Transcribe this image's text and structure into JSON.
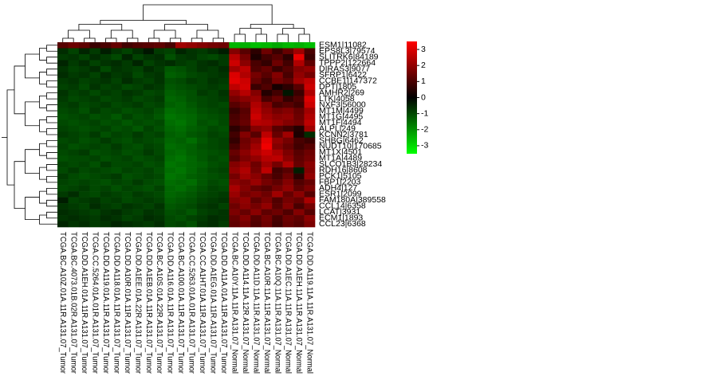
{
  "chart_data": {
    "type": "heatmap",
    "rows": [
      "ESM1|11082",
      "EPS8L3|79574",
      "SLITRK6|84189",
      "TPPP2|122664",
      "DIRAS3|9077",
      "SFRP1|6422",
      "CCBE1|147372",
      "DPT|1805",
      "AMHR2|269",
      "LTK|4058",
      "NXF3|56000",
      "MT1M|4499",
      "MT1G|4495",
      "MT1F|4494",
      "ALPL|249",
      "KCNN2|3781",
      "SHBG|6462",
      "NUDT10|170685",
      "MT1X|4501",
      "MT1A|4489",
      "SLCO1B3|28234",
      "RDH16|8608",
      "PCK1|5105",
      "FBP1|2203",
      "ADH4|127",
      "ESR1|2099",
      "FAM180A|389558",
      "CCL14|6358",
      "LCAT|3931",
      "ECM1|1893",
      "CCL23|6368"
    ],
    "columns": [
      "TCGA.BC.A10Z.01A.11R.A131.07_Tumor",
      "TCGA.BC.4073.01B.02R.A131.07_Tumor",
      "TCGA.DD.A1EH.01A.11R.A131.07_Tumor",
      "TCGA.CC.5264.01A.01R.A131.07_Tumor",
      "TCGA.DD.A119.01A.11R.A131.07_Tumor",
      "TCGA.DD.A118.01A.11R.A131.07_Tumor",
      "TCGA.DD.A10R.01A.11R.A131.07_Tumor",
      "TCGA.DD.A1EE.01A.22R.A131.07_Tumor",
      "TCGA.DD.A1EB.01A.11R.A131.07_Tumor",
      "TCGA.BC.A10S.01A.22R.A131.07_Tumor",
      "TCGA.DD.A116.01A.11R.A131.07_Tumor",
      "TCGA.BC.A100.01A.11R.A131.07_Tumor",
      "TCGA.CC.5263.01A.01R.A131.07_Tumor",
      "TCGA.CC.A1HT.01A.11R.A131.07_Tumor",
      "TCGA.DD.A1EG.01A.11R.A131.07_Tumor",
      "TCGA.DD.A11A.01A.11R.A131.07_Tumor",
      "TCGA.BC.A10Y.11A.11R.A131.07_Normal",
      "TCGA.DD.A114.11A.12R.A131.07_Normal",
      "TCGA.DD.A11D.11A.11R.A131.07_Normal",
      "TCGA.BC.A10R.11A.11R.A131.07_Normal",
      "TCGA.BC.A10Q.11A.11R.A131.07_Normal",
      "TCGA.DD.A1EC.11A.11R.A131.07_Normal",
      "TCGA.DD.A1EH.11A.11R.A131.07_Normal",
      "TCGA.DD.A119.11A.11R.A131.07_Normal"
    ],
    "values": [
      [
        1.2,
        1.5,
        1.3,
        0.8,
        1.0,
        1.4,
        0.9,
        1.1,
        1.2,
        1.3,
        1.0,
        2.2,
        2.0,
        1.8,
        1.6,
        1.5,
        -2.5,
        -2.4,
        -2.6,
        -2.5,
        -2.3,
        -2.5,
        -2.4,
        -2.6
      ],
      [
        -0.6,
        -0.9,
        -0.5,
        -0.8,
        -0.4,
        -0.7,
        -0.9,
        -0.6,
        -0.3,
        -0.8,
        -0.9,
        -0.5,
        -0.7,
        -0.8,
        -0.6,
        -0.4,
        1.8,
        1.2,
        0.6,
        1.5,
        0.8,
        1.4,
        2.2,
        1.0
      ],
      [
        -0.8,
        -0.7,
        -0.9,
        -0.6,
        -0.8,
        -1.0,
        -0.5,
        -0.9,
        -0.7,
        -0.6,
        -1.1,
        -0.8,
        -0.7,
        -0.9,
        -1.0,
        -0.8,
        2.5,
        1.6,
        0.4,
        0.9,
        1.2,
        0.6,
        3.2,
        0.8
      ],
      [
        -0.5,
        -0.8,
        -0.6,
        -0.9,
        -0.7,
        -0.6,
        -0.8,
        -0.5,
        -0.9,
        -0.7,
        -0.6,
        -0.8,
        -0.9,
        -0.7,
        -0.6,
        -0.8,
        2.8,
        1.9,
        1.0,
        0.7,
        1.5,
        0.9,
        2.4,
        1.3
      ],
      [
        -0.7,
        -0.9,
        -0.8,
        -0.6,
        -1.0,
        -0.7,
        -0.8,
        -0.9,
        -0.6,
        -0.8,
        -1.2,
        -1.1,
        -0.9,
        -0.7,
        -0.8,
        -0.6,
        2.2,
        2.6,
        1.1,
        1.4,
        0.8,
        1.2,
        1.8,
        2.0
      ],
      [
        -0.6,
        -0.8,
        -0.7,
        -0.9,
        -0.6,
        -0.8,
        -0.7,
        -1.0,
        -0.8,
        -0.7,
        -1.3,
        -1.2,
        -1.0,
        -0.9,
        -0.8,
        -0.7,
        3.0,
        2.4,
        1.6,
        1.2,
        1.8,
        1.0,
        2.0,
        1.6
      ],
      [
        -0.8,
        -0.7,
        -0.9,
        -0.8,
        -0.7,
        -0.9,
        -0.6,
        -0.8,
        -0.9,
        -0.7,
        -1.1,
        -1.0,
        -0.8,
        -0.9,
        -0.7,
        -0.8,
        3.1,
        2.8,
        1.4,
        0.9,
        1.6,
        1.3,
        2.2,
        2.6
      ],
      [
        -0.9,
        -0.8,
        -1.0,
        -0.7,
        -0.9,
        -0.8,
        -1.0,
        -0.9,
        -0.7,
        -0.8,
        -1.2,
        -1.1,
        -1.0,
        -0.9,
        -0.8,
        -0.9,
        2.6,
        2.9,
        0.8,
        1.1,
        0.3,
        0.6,
        1.2,
        2.8
      ],
      [
        -0.7,
        -0.9,
        -0.8,
        -1.0,
        -0.8,
        -0.9,
        -0.7,
        -0.8,
        -1.0,
        -0.9,
        -1.3,
        -1.2,
        -1.1,
        -0.8,
        -0.9,
        -0.7,
        2.0,
        2.5,
        1.8,
        0.5,
        0.9,
        -0.3,
        0.8,
        2.4
      ],
      [
        -0.8,
        -1.0,
        -0.9,
        -0.8,
        -1.0,
        -0.9,
        -0.8,
        -1.0,
        -0.9,
        -0.8,
        -1.4,
        -1.3,
        -1.1,
        -1.0,
        -0.9,
        -0.8,
        1.6,
        1.9,
        2.1,
        1.0,
        1.4,
        0.7,
        1.1,
        3.0
      ],
      [
        -0.9,
        -0.8,
        -1.0,
        -0.9,
        -0.8,
        -1.0,
        -0.9,
        -0.8,
        -1.0,
        -0.9,
        -1.3,
        -1.4,
        -1.2,
        -1.0,
        -0.9,
        -1.0,
        1.2,
        1.5,
        2.4,
        1.8,
        1.0,
        1.2,
        0.9,
        2.8
      ],
      [
        -1.0,
        -0.9,
        -1.1,
        -0.8,
        -1.0,
        -0.9,
        -1.1,
        -1.0,
        -0.9,
        -1.1,
        -1.5,
        -1.4,
        -1.3,
        -1.1,
        -1.0,
        -0.9,
        0.8,
        1.2,
        2.6,
        2.0,
        1.6,
        1.8,
        1.4,
        2.2
      ],
      [
        -1.1,
        -1.0,
        -0.9,
        -1.1,
        -1.0,
        -1.2,
        -0.9,
        -1.1,
        -1.0,
        -1.2,
        -1.6,
        -1.5,
        -1.4,
        -1.2,
        -1.1,
        -1.0,
        1.0,
        1.3,
        2.8,
        2.2,
        1.9,
        2.0,
        1.5,
        2.4
      ],
      [
        -1.0,
        -1.1,
        -1.0,
        -0.9,
        -1.1,
        -1.0,
        -1.2,
        -1.0,
        -1.1,
        -1.0,
        -1.5,
        -1.6,
        -1.4,
        -1.1,
        -1.2,
        -1.0,
        1.1,
        1.4,
        2.5,
        2.4,
        2.1,
        1.8,
        1.6,
        2.6
      ],
      [
        -0.9,
        -1.0,
        -1.1,
        -1.0,
        -0.9,
        -1.1,
        -1.0,
        -1.2,
        -0.9,
        -1.1,
        -1.4,
        -1.5,
        -1.3,
        -1.2,
        -1.0,
        -1.1,
        0.6,
        1.0,
        1.8,
        2.0,
        1.2,
        0.9,
        0.5,
        2.2
      ],
      [
        -0.8,
        -0.9,
        -1.0,
        -0.8,
        -1.1,
        -0.9,
        -1.0,
        -0.8,
        -1.0,
        -0.9,
        -1.3,
        -1.4,
        -1.2,
        -1.1,
        -0.9,
        -1.0,
        0.9,
        1.8,
        1.2,
        2.6,
        1.4,
        2.2,
        0.4,
        -0.6
      ],
      [
        -1.0,
        -0.9,
        -1.1,
        -1.0,
        -0.8,
        -1.0,
        -1.1,
        -0.9,
        -1.0,
        -1.1,
        -1.4,
        -1.3,
        -1.5,
        -1.2,
        -1.0,
        -0.9,
        0.7,
        1.5,
        1.9,
        3.1,
        2.0,
        1.6,
        1.0,
        0.8
      ],
      [
        -0.9,
        -1.1,
        -1.0,
        -0.9,
        -1.0,
        -0.8,
        -1.0,
        -1.1,
        -0.9,
        -1.0,
        -1.5,
        -1.4,
        -1.3,
        -1.1,
        -1.0,
        -0.9,
        1.0,
        1.6,
        2.2,
        3.3,
        1.8,
        1.4,
        0.9,
        1.2
      ],
      [
        -1.0,
        -0.9,
        -0.8,
        -1.1,
        -1.0,
        -0.9,
        -1.1,
        -1.0,
        -0.8,
        -1.0,
        -1.4,
        -1.5,
        -1.3,
        -1.2,
        -1.1,
        -1.0,
        1.4,
        1.9,
        2.4,
        2.8,
        2.3,
        1.7,
        1.2,
        1.5
      ],
      [
        -1.1,
        -1.0,
        -1.0,
        -0.9,
        -1.1,
        -1.0,
        -0.9,
        -1.1,
        -1.0,
        -0.9,
        -1.5,
        -1.6,
        -1.4,
        -1.2,
        -1.0,
        -1.1,
        1.2,
        1.7,
        2.0,
        2.5,
        2.6,
        1.9,
        1.3,
        1.6
      ],
      [
        -0.9,
        -1.0,
        -0.9,
        -1.1,
        -0.8,
        -1.0,
        -1.0,
        -0.9,
        -1.1,
        -1.0,
        -1.6,
        -1.5,
        -1.4,
        -1.3,
        -1.1,
        -1.0,
        1.8,
        2.1,
        1.5,
        2.2,
        1.6,
        2.4,
        1.4,
        1.9
      ],
      [
        -1.0,
        -0.8,
        -1.0,
        -0.9,
        -1.0,
        -1.1,
        -0.9,
        -1.0,
        -0.9,
        -1.1,
        -1.5,
        -1.6,
        -1.4,
        -1.2,
        -1.0,
        -0.9,
        2.0,
        2.4,
        1.6,
        2.6,
        0.9,
        1.2,
        -0.4,
        1.8
      ],
      [
        -0.8,
        -1.0,
        -1.1,
        -1.0,
        -0.9,
        -0.8,
        -1.1,
        -1.0,
        -0.9,
        -1.0,
        -1.6,
        -1.5,
        -1.3,
        -1.2,
        -1.1,
        -1.0,
        1.6,
        2.2,
        1.9,
        1.4,
        1.0,
        1.5,
        0.6,
        2.0
      ],
      [
        -0.9,
        -1.0,
        -0.9,
        -1.0,
        -1.1,
        -0.9,
        -1.0,
        -0.8,
        -1.0,
        -1.1,
        -1.5,
        -1.4,
        -1.5,
        -1.2,
        -1.0,
        -1.1,
        1.9,
        1.7,
        2.1,
        1.6,
        1.3,
        1.8,
        1.1,
        1.4
      ],
      [
        -1.0,
        -0.9,
        -0.8,
        -1.0,
        -0.9,
        -1.1,
        -0.9,
        -1.0,
        -1.1,
        -0.9,
        -1.4,
        -1.5,
        -1.3,
        -1.1,
        -0.9,
        -1.0,
        2.3,
        1.8,
        1.4,
        1.2,
        1.6,
        2.0,
        1.3,
        1.7
      ],
      [
        -0.8,
        -0.6,
        -0.9,
        -1.0,
        -0.8,
        -0.9,
        -1.0,
        -0.8,
        -0.9,
        -1.0,
        -1.4,
        -1.3,
        -1.2,
        -1.0,
        -0.9,
        -0.8,
        2.1,
        1.6,
        1.8,
        1.5,
        2.2,
        1.4,
        1.9,
        1.2
      ],
      [
        -0.4,
        -0.9,
        -0.8,
        -0.7,
        -0.9,
        -0.8,
        -1.0,
        -0.9,
        -0.8,
        -0.9,
        -1.3,
        -1.2,
        -1.1,
        -0.9,
        -0.8,
        -0.7,
        1.8,
        2.0,
        1.3,
        1.7,
        1.1,
        1.6,
        1.4,
        2.3
      ],
      [
        -0.7,
        -0.8,
        -0.9,
        -0.6,
        -0.8,
        -0.9,
        -0.7,
        -0.8,
        -0.9,
        -0.7,
        -1.2,
        -1.1,
        -1.0,
        -0.8,
        -0.7,
        -0.9,
        1.5,
        1.9,
        1.6,
        2.0,
        1.2,
        1.8,
        1.0,
        1.6
      ],
      [
        -0.6,
        -0.7,
        -0.8,
        -0.9,
        -0.7,
        -0.6,
        -0.8,
        -0.9,
        -0.7,
        -0.8,
        -1.1,
        -1.0,
        -1.2,
        -0.9,
        -0.8,
        -0.7,
        1.7,
        1.4,
        1.9,
        1.3,
        1.5,
        1.1,
        1.8,
        1.2
      ],
      [
        -0.7,
        -0.6,
        -0.7,
        -0.8,
        -0.6,
        -0.7,
        -0.9,
        -0.8,
        -0.6,
        -0.7,
        -1.0,
        -1.1,
        -0.9,
        -0.8,
        -0.6,
        -0.7,
        1.4,
        1.8,
        1.2,
        1.6,
        1.0,
        1.5,
        1.3,
        1.9
      ],
      [
        -0.5,
        -0.7,
        -0.6,
        -0.8,
        -0.7,
        -0.5,
        -0.6,
        -0.7,
        -0.8,
        -0.6,
        -1.0,
        -0.9,
        -1.1,
        -0.7,
        -0.6,
        -0.8,
        1.3,
        1.6,
        1.1,
        1.5,
        0.9,
        1.4,
        1.2,
        1.7
      ]
    ],
    "colors": {
      "low": "#00ff00",
      "mid": "#000000",
      "high": "#ff0000"
    },
    "colorbar": {
      "ylim": [
        -3.5,
        3.5
      ],
      "yticks": [
        3,
        2,
        1,
        0,
        -1,
        -2,
        -3
      ]
    }
  }
}
